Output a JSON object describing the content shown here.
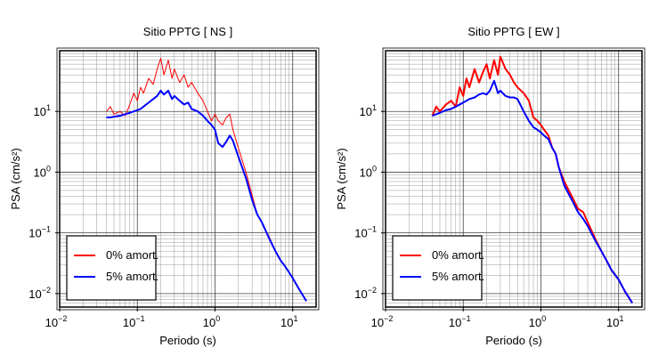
{
  "chart_data": [
    {
      "type": "line",
      "title": "Sitio PPTG [ NS ]",
      "xlabel": "Periodo (s)",
      "ylabel": "PSA (cm/s²)",
      "x": [
        0.04,
        0.045,
        0.05,
        0.06,
        0.07,
        0.08,
        0.09,
        0.1,
        0.11,
        0.12,
        0.14,
        0.16,
        0.18,
        0.2,
        0.22,
        0.25,
        0.28,
        0.3,
        0.35,
        0.4,
        0.45,
        0.5,
        0.6,
        0.7,
        0.8,
        0.9,
        1.0,
        1.1,
        1.25,
        1.4,
        1.55,
        1.7,
        2.0,
        2.5,
        3.0,
        3.5,
        4.0,
        5.0,
        6.0,
        7.0,
        8.0,
        10,
        12,
        15
      ],
      "series": [
        {
          "name": "0% amort.",
          "color": "#ff0000",
          "line_width": 1,
          "values": [
            10,
            12,
            9,
            10,
            8.5,
            13,
            20,
            15,
            25,
            20,
            35,
            28,
            50,
            75,
            40,
            70,
            35,
            50,
            30,
            40,
            25,
            30,
            20,
            15,
            10,
            7,
            9,
            7,
            6,
            8,
            9,
            5,
            2.5,
            1,
            0.42,
            0.2,
            0.15,
            0.085,
            0.05,
            0.035,
            0.028,
            0.018,
            0.012,
            0.0075
          ]
        },
        {
          "name": "5% amort.",
          "color": "#0000ff",
          "line_width": 2,
          "values": [
            8,
            8,
            8.2,
            8.5,
            9,
            9.5,
            10,
            10.5,
            11,
            12,
            14,
            16,
            18,
            22,
            19,
            22,
            16,
            18,
            15,
            13,
            14,
            11,
            10,
            8.5,
            7,
            6,
            5,
            3,
            2.6,
            3.2,
            4,
            3.3,
            1.8,
            0.8,
            0.35,
            0.2,
            0.15,
            0.08,
            0.05,
            0.035,
            0.028,
            0.018,
            0.012,
            0.0075
          ]
        }
      ],
      "xscale": "log",
      "yscale": "log",
      "xlim": [
        0.01,
        20
      ],
      "ylim": [
        0.006,
        100
      ],
      "xticks": [
        {
          "value": 0.01,
          "label": "10",
          "exponent": "−2"
        },
        {
          "value": 0.1,
          "label": "10",
          "exponent": "−1"
        },
        {
          "value": 1,
          "label": "10",
          "exponent": "0"
        },
        {
          "value": 10,
          "label": "10",
          "exponent": "1"
        }
      ],
      "yticks": [
        {
          "value": 0.01,
          "label": "10",
          "exponent": "−2"
        },
        {
          "value": 0.1,
          "label": "10",
          "exponent": "−1"
        },
        {
          "value": 1,
          "label": "10",
          "exponent": "0"
        },
        {
          "value": 10,
          "label": "10",
          "exponent": "1"
        }
      ],
      "grid": true,
      "minor_grid": true,
      "legend": "lower left"
    },
    {
      "type": "line",
      "title": "Sitio PPTG [ EW ]",
      "xlabel": "Periodo (s)",
      "ylabel": "PSA (cm/s²)",
      "x": [
        0.04,
        0.045,
        0.05,
        0.06,
        0.07,
        0.08,
        0.09,
        0.1,
        0.11,
        0.12,
        0.14,
        0.16,
        0.18,
        0.2,
        0.22,
        0.25,
        0.28,
        0.3,
        0.35,
        0.4,
        0.45,
        0.5,
        0.6,
        0.7,
        0.8,
        0.9,
        1.0,
        1.1,
        1.25,
        1.4,
        1.55,
        1.7,
        2.0,
        2.5,
        3.0,
        3.5,
        4.0,
        5.0,
        6.0,
        7.0,
        8.0,
        10,
        12,
        15
      ],
      "series": [
        {
          "name": "0% amort.",
          "color": "#ff0000",
          "line_width": 2,
          "values": [
            8.5,
            12,
            10,
            13,
            15,
            12,
            25,
            18,
            35,
            25,
            50,
            30,
            45,
            60,
            35,
            70,
            40,
            80,
            50,
            40,
            30,
            25,
            20,
            15,
            8,
            7,
            6,
            5,
            4,
            2.5,
            2,
            1.2,
            0.7,
            0.4,
            0.25,
            0.22,
            0.15,
            0.08,
            0.05,
            0.035,
            0.025,
            0.017,
            0.011,
            0.007
          ]
        },
        {
          "name": "5% amort.",
          "color": "#0000ff",
          "line_width": 2,
          "values": [
            8.5,
            9,
            9.5,
            10.5,
            11,
            12,
            13,
            14,
            15,
            16,
            17,
            19,
            20,
            19,
            22,
            32,
            20,
            22,
            18,
            17,
            17,
            16,
            10,
            7,
            5.5,
            5,
            4.5,
            4,
            3.5,
            2.5,
            2,
            1.2,
            0.6,
            0.35,
            0.22,
            0.17,
            0.13,
            0.075,
            0.05,
            0.035,
            0.025,
            0.017,
            0.011,
            0.007
          ]
        }
      ],
      "xscale": "log",
      "yscale": "log",
      "xlim": [
        0.01,
        20
      ],
      "ylim": [
        0.006,
        100
      ],
      "xticks": [
        {
          "value": 0.01,
          "label": "10",
          "exponent": "−2"
        },
        {
          "value": 0.1,
          "label": "10",
          "exponent": "−1"
        },
        {
          "value": 1,
          "label": "10",
          "exponent": "0"
        },
        {
          "value": 10,
          "label": "10",
          "exponent": "1"
        }
      ],
      "yticks": [
        {
          "value": 0.01,
          "label": "10",
          "exponent": "−2"
        },
        {
          "value": 0.1,
          "label": "10",
          "exponent": "−1"
        },
        {
          "value": 1,
          "label": "10",
          "exponent": "0"
        },
        {
          "value": 10,
          "label": "10",
          "exponent": "1"
        }
      ],
      "grid": true,
      "minor_grid": true,
      "legend": "lower left"
    }
  ]
}
